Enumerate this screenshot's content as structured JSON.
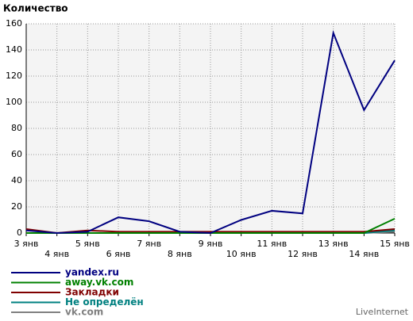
{
  "chart_data": {
    "type": "line",
    "title": "Количество",
    "credit": "LiveInternet",
    "categories": [
      "3 янв",
      "4 янв",
      "5 янв",
      "6 янв",
      "7 янв",
      "8 янв",
      "9 янв",
      "10 янв",
      "11 янв",
      "12 янв",
      "13 янв",
      "14 янв",
      "15 янв"
    ],
    "series": [
      {
        "name": "yandex.ru",
        "color": "#000080",
        "values": [
          2,
          0,
          1,
          12,
          9,
          1,
          0,
          10,
          17,
          15,
          153,
          94,
          132
        ]
      },
      {
        "name": "away.vk.com",
        "color": "#008000",
        "values": [
          0,
          0,
          0,
          0,
          0,
          0,
          0,
          0,
          0,
          0,
          0,
          0,
          11
        ]
      },
      {
        "name": "Закладки",
        "color": "#800000",
        "values": [
          3,
          0,
          2,
          1,
          1,
          1,
          1,
          1,
          1,
          1,
          1,
          1,
          3
        ]
      },
      {
        "name": "Не определён",
        "color": "#008080",
        "values": [
          0,
          0,
          0,
          0,
          0,
          0,
          0,
          0,
          0,
          0,
          0,
          0,
          2
        ]
      },
      {
        "name": "vk.com",
        "color": "#808080",
        "values": [
          0,
          0,
          0,
          0,
          0,
          0,
          0,
          0,
          0,
          0,
          0,
          0,
          1
        ]
      }
    ],
    "ylim": [
      0,
      160
    ],
    "yticks": [
      0,
      20,
      40,
      60,
      80,
      100,
      120,
      140,
      160
    ],
    "grid": true
  }
}
